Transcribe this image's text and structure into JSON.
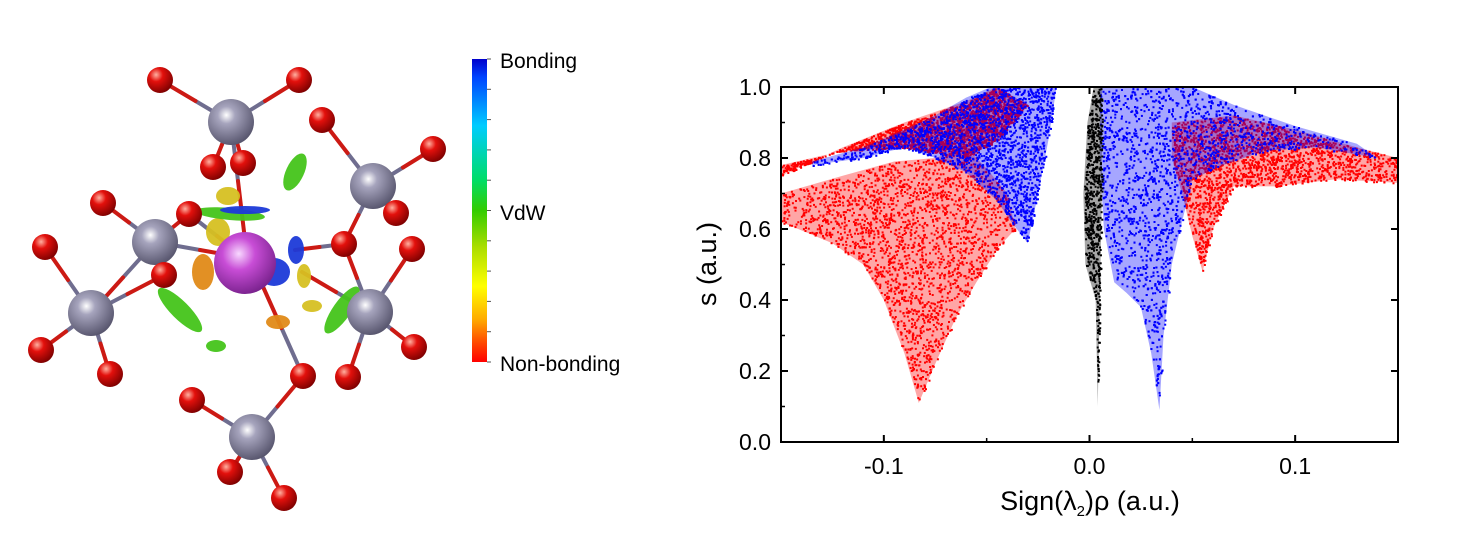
{
  "colorbar": {
    "labels": {
      "top": "Bonding",
      "middle": "VdW",
      "bottom": "Non-bonding"
    },
    "colors": [
      "#0000cc",
      "#0044ff",
      "#00ccff",
      "#00dd66",
      "#33cc00",
      "#aadd00",
      "#ffff00",
      "#ffaa00",
      "#ff4400",
      "#ff0000"
    ]
  },
  "molecule": {
    "atom_colors": {
      "oxygen": "#e3100c",
      "metal": "#7a7894",
      "central": "#c84dd6"
    },
    "isosurface_colors": {
      "green": "#44c41a",
      "blue": "#1c3ad8",
      "yellow": "#d6c022",
      "orange": "#e08a18"
    }
  },
  "chart_data": {
    "type": "scatter",
    "xlabel_main": "Sign(",
    "xlabel_lambda": "λ",
    "xlabel_sub": "2",
    "xlabel_rest": ")ρ (a.u.)",
    "ylabel": "s (a.u.)",
    "xlim": [
      -0.15,
      0.15
    ],
    "ylim": [
      0.0,
      1.0
    ],
    "xticks": [
      -0.1,
      0.0,
      0.1
    ],
    "xtick_labels": [
      "-0.1",
      "0.0",
      "0.1"
    ],
    "yticks": [
      0.0,
      0.2,
      0.4,
      0.6,
      0.8,
      1.0
    ],
    "ytick_labels": [
      "0.0",
      "0.2",
      "0.4",
      "0.6",
      "0.8",
      "1.0"
    ],
    "series": [
      {
        "color": "#ff0000",
        "regions": [
          {
            "polygon": [
              [
                -0.15,
                0.75
              ],
              [
                -0.12,
                0.83
              ],
              [
                -0.09,
                0.9
              ],
              [
                -0.06,
                0.96
              ],
              [
                -0.045,
                1.0
              ],
              [
                -0.03,
                0.95
              ],
              [
                -0.045,
                0.85
              ],
              [
                -0.06,
                0.8
              ],
              [
                -0.09,
                0.83
              ],
              [
                -0.12,
                0.82
              ],
              [
                -0.15,
                0.78
              ]
            ]
          },
          {
            "polygon": [
              [
                -0.15,
                0.7
              ],
              [
                -0.12,
                0.75
              ],
              [
                -0.095,
                0.79
              ],
              [
                -0.075,
                0.8
              ],
              [
                -0.06,
                0.83
              ],
              [
                -0.05,
                0.77
              ],
              [
                -0.04,
                0.7
              ],
              [
                -0.036,
                0.6
              ],
              [
                -0.044,
                0.55
              ],
              [
                -0.055,
                0.45
              ],
              [
                -0.065,
                0.35
              ],
              [
                -0.075,
                0.22
              ],
              [
                -0.083,
                0.11
              ],
              [
                -0.09,
                0.25
              ],
              [
                -0.1,
                0.4
              ],
              [
                -0.11,
                0.5
              ],
              [
                -0.125,
                0.56
              ],
              [
                -0.15,
                0.62
              ]
            ]
          },
          {
            "polygon": [
              [
                0.04,
                0.9
              ],
              [
                0.07,
                0.92
              ],
              [
                0.1,
                0.88
              ],
              [
                0.13,
                0.83
              ],
              [
                0.15,
                0.8
              ],
              [
                0.15,
                0.73
              ],
              [
                0.12,
                0.74
              ],
              [
                0.09,
                0.72
              ],
              [
                0.07,
                0.72
              ],
              [
                0.06,
                0.6
              ],
              [
                0.055,
                0.48
              ],
              [
                0.05,
                0.58
              ],
              [
                0.045,
                0.7
              ],
              [
                0.04,
                0.8
              ]
            ]
          }
        ]
      },
      {
        "color": "#0000ff",
        "regions": [
          {
            "polygon": [
              [
                -0.135,
                0.79
              ],
              [
                -0.11,
                0.83
              ],
              [
                -0.09,
                0.88
              ],
              [
                -0.075,
                0.92
              ],
              [
                -0.06,
                0.97
              ],
              [
                -0.048,
                1.0
              ],
              [
                -0.016,
                1.0
              ],
              [
                -0.02,
                0.85
              ],
              [
                -0.025,
                0.7
              ],
              [
                -0.03,
                0.56
              ],
              [
                -0.038,
                0.62
              ],
              [
                -0.045,
                0.68
              ],
              [
                -0.06,
                0.76
              ],
              [
                -0.075,
                0.8
              ],
              [
                -0.09,
                0.83
              ],
              [
                -0.11,
                0.8
              ],
              [
                -0.135,
                0.78
              ]
            ]
          },
          {
            "polygon": [
              [
                0.005,
                1.0
              ],
              [
                0.05,
                1.0
              ],
              [
                0.07,
                0.95
              ],
              [
                0.1,
                0.89
              ],
              [
                0.13,
                0.84
              ],
              [
                0.14,
                0.8
              ],
              [
                0.11,
                0.83
              ],
              [
                0.085,
                0.82
              ],
              [
                0.065,
                0.78
              ],
              [
                0.05,
                0.74
              ],
              [
                0.04,
                0.5
              ],
              [
                0.036,
                0.3
              ],
              [
                0.034,
                0.09
              ],
              [
                0.03,
                0.25
              ],
              [
                0.025,
                0.38
              ],
              [
                0.018,
                0.42
              ],
              [
                0.012,
                0.45
              ],
              [
                0.007,
                0.6
              ],
              [
                0.005,
                0.8
              ]
            ]
          }
        ]
      },
      {
        "color": "#000000",
        "regions": [
          {
            "polygon": [
              [
                0.002,
                1.0
              ],
              [
                0.006,
                1.0
              ],
              [
                0.006,
                0.7
              ],
              [
                0.005,
                0.4
              ],
              [
                0.004,
                0.1
              ],
              [
                0.003,
                0.4
              ],
              [
                -0.002,
                0.5
              ],
              [
                -0.003,
                0.7
              ],
              [
                -0.001,
                0.9
              ]
            ]
          }
        ]
      }
    ]
  }
}
